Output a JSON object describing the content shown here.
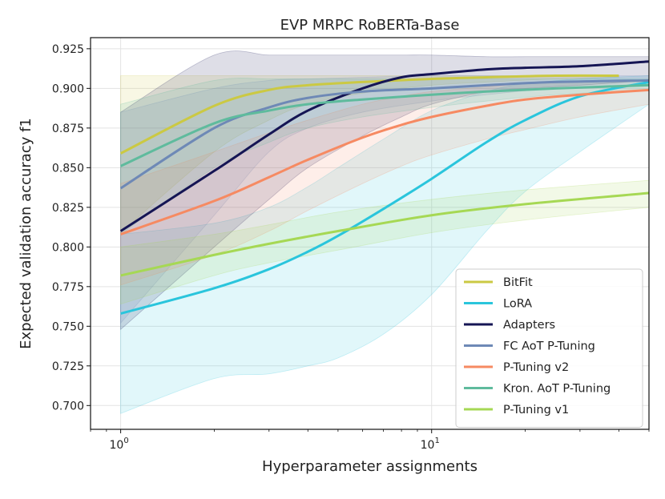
{
  "chart_data": {
    "type": "line",
    "title": "EVP MRPC RoBERTa-Base",
    "xlabel": "Hyperparameter assignments",
    "ylabel": "Expected validation accuracy f1",
    "x_scale": "log",
    "xlim": [
      0.8,
      50
    ],
    "ylim": [
      0.685,
      0.932
    ],
    "x_ticks": [
      {
        "value": 1,
        "base": "10",
        "exp": "0"
      },
      {
        "value": 10,
        "base": "10",
        "exp": "1"
      }
    ],
    "y_ticks": [
      "0.700",
      "0.725",
      "0.750",
      "0.775",
      "0.800",
      "0.825",
      "0.850",
      "0.875",
      "0.900",
      "0.925"
    ],
    "grid": true,
    "legend_position": "lower-right",
    "series": [
      {
        "name": "BitFit",
        "color": "#cbc943",
        "x": [
          1,
          2,
          3,
          4,
          6,
          10,
          15,
          25,
          40
        ],
        "y": [
          0.859,
          0.889,
          0.899,
          0.902,
          0.904,
          0.906,
          0.907,
          0.908,
          0.908
        ],
        "band_upper": [
          0.908,
          0.908,
          0.908,
          0.908,
          0.908,
          0.908,
          0.908,
          0.908,
          0.908
        ],
        "band_lower": [
          0.809,
          0.86,
          0.88,
          0.89,
          0.897,
          0.902,
          0.904,
          0.906,
          0.907
        ]
      },
      {
        "name": "LoRA",
        "color": "#2ac5dc",
        "x": [
          1,
          2,
          3,
          4,
          5,
          7,
          10,
          15,
          20,
          30,
          50
        ],
        "y": [
          0.758,
          0.774,
          0.786,
          0.797,
          0.807,
          0.824,
          0.843,
          0.866,
          0.88,
          0.895,
          0.904
        ],
        "band_upper": [
          0.808,
          0.815,
          0.825,
          0.838,
          0.85,
          0.868,
          0.886,
          0.898,
          0.903,
          0.906,
          0.908
        ],
        "band_lower": [
          0.695,
          0.717,
          0.72,
          0.725,
          0.73,
          0.745,
          0.77,
          0.81,
          0.835,
          0.86,
          0.89
        ]
      },
      {
        "name": "Adapters",
        "color": "#151554",
        "x": [
          1,
          2,
          3,
          4,
          6,
          8,
          10,
          15,
          20,
          30,
          50
        ],
        "y": [
          0.81,
          0.848,
          0.871,
          0.886,
          0.9,
          0.907,
          0.909,
          0.912,
          0.913,
          0.914,
          0.917
        ],
        "band_upper": [
          0.885,
          0.921,
          0.921,
          0.921,
          0.921,
          0.921,
          0.921,
          0.92,
          0.92,
          0.92,
          0.92
        ],
        "band_lower": [
          0.748,
          0.8,
          0.83,
          0.85,
          0.87,
          0.882,
          0.89,
          0.898,
          0.9,
          0.902,
          0.905
        ]
      },
      {
        "name": "FC AoT P-Tuning",
        "color": "#6e89b6",
        "x": [
          1,
          2,
          3,
          4,
          6,
          10,
          15,
          25,
          50
        ],
        "y": [
          0.837,
          0.875,
          0.888,
          0.894,
          0.898,
          0.9,
          0.902,
          0.904,
          0.905
        ],
        "band_upper": [
          0.885,
          0.9,
          0.905,
          0.906,
          0.907,
          0.908,
          0.908,
          0.908,
          0.908
        ],
        "band_lower": [
          0.752,
          0.82,
          0.86,
          0.875,
          0.885,
          0.892,
          0.896,
          0.9,
          0.902
        ]
      },
      {
        "name": "P-Tuning v2",
        "color": "#f68a62",
        "x": [
          1,
          2,
          3,
          4,
          6,
          8,
          10,
          15,
          20,
          30,
          50
        ],
        "y": [
          0.808,
          0.829,
          0.844,
          0.855,
          0.869,
          0.877,
          0.882,
          0.889,
          0.893,
          0.896,
          0.899
        ],
        "band_upper": [
          0.84,
          0.86,
          0.872,
          0.88,
          0.89,
          0.895,
          0.898,
          0.901,
          0.903,
          0.904,
          0.905
        ],
        "band_lower": [
          0.776,
          0.795,
          0.81,
          0.823,
          0.84,
          0.851,
          0.858,
          0.868,
          0.874,
          0.882,
          0.89
        ]
      },
      {
        "name": "Kron. AoT P-Tuning",
        "color": "#5fbb9d",
        "x": [
          1,
          2,
          3,
          4,
          6,
          10,
          15,
          25,
          50
        ],
        "y": [
          0.851,
          0.878,
          0.886,
          0.89,
          0.893,
          0.896,
          0.898,
          0.9,
          0.902
        ],
        "band_upper": [
          0.89,
          0.905,
          0.906,
          0.906,
          0.906,
          0.906,
          0.906,
          0.906,
          0.906
        ],
        "band_lower": [
          0.808,
          0.85,
          0.866,
          0.875,
          0.882,
          0.888,
          0.892,
          0.896,
          0.899
        ]
      },
      {
        "name": "P-Tuning v1",
        "color": "#a6d854",
        "x": [
          1,
          2,
          3,
          5,
          10,
          20,
          50
        ],
        "y": [
          0.782,
          0.795,
          0.802,
          0.81,
          0.82,
          0.827,
          0.834
        ],
        "band_upper": [
          0.8,
          0.808,
          0.814,
          0.822,
          0.83,
          0.836,
          0.842
        ],
        "band_lower": [
          0.764,
          0.782,
          0.79,
          0.798,
          0.809,
          0.817,
          0.825
        ]
      }
    ]
  }
}
